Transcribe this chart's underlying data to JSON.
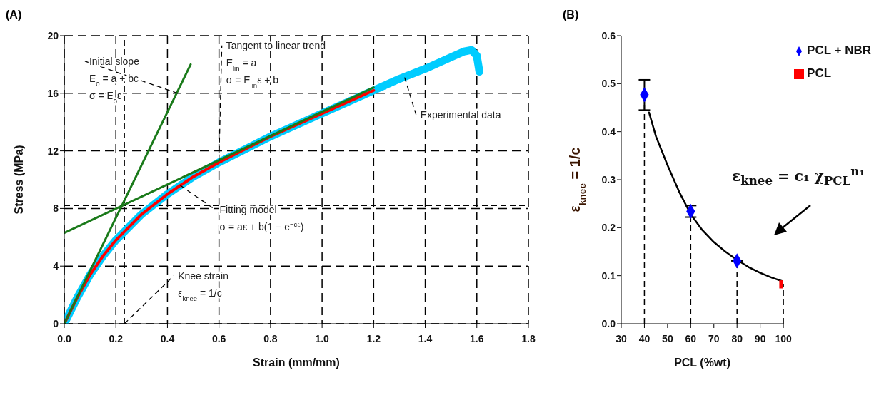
{
  "chart_data": [
    {
      "type": "line",
      "title": "(A)",
      "xlabel": "Strain (mm/mm)",
      "ylabel": "Stress (MPa)",
      "xlim": [
        0,
        1.8
      ],
      "ylim": [
        0,
        20
      ],
      "xticks": [
        {
          "value": 0,
          "label": "0.0"
        },
        {
          "value": 0.2,
          "label": "0.2"
        },
        {
          "value": 0.4,
          "label": "0.4"
        },
        {
          "value": 0.6,
          "label": "0.6"
        },
        {
          "value": 0.8,
          "label": "0.8"
        },
        {
          "value": 1,
          "label": "1.0"
        },
        {
          "value": 1.2,
          "label": "1.2"
        },
        {
          "value": 1.4,
          "label": "1.4"
        },
        {
          "value": 1.6,
          "label": "1.6"
        },
        {
          "value": 1.8,
          "label": "1.8"
        }
      ],
      "yticks": [
        0,
        4,
        8,
        12,
        16,
        20
      ],
      "grid": true,
      "legend": false,
      "marker": "none",
      "line_style": "solid",
      "series": [
        {
          "color": "#00ccff",
          "x": [
            0,
            0.05,
            0.1,
            0.15,
            0.2,
            0.3,
            0.4,
            0.5,
            0.6,
            0.7,
            0.8,
            0.9,
            1.0,
            1.1,
            1.2,
            1.3,
            1.4,
            1.5,
            1.55,
            1.58,
            1.6,
            1.61
          ],
          "values": [
            0,
            1.8,
            3.4,
            4.7,
            5.8,
            7.6,
            9.0,
            10.2,
            11.2,
            12.1,
            13.0,
            13.8,
            14.6,
            15.4,
            16.2,
            17.0,
            17.7,
            18.5,
            18.9,
            19.0,
            18.6,
            17.5
          ]
        },
        {
          "color": "#ff0000",
          "x": [
            0,
            0.05,
            0.1,
            0.15,
            0.2,
            0.3,
            0.4,
            0.5,
            0.6,
            0.7,
            0.8,
            0.9,
            1.0,
            1.1,
            1.2
          ],
          "values": [
            0,
            1.8,
            3.4,
            4.7,
            5.8,
            7.6,
            9.0,
            10.2,
            11.2,
            12.1,
            13.0,
            13.8,
            14.6,
            15.4,
            16.2
          ]
        },
        {
          "color": "#1a7a1a",
          "x": [
            0,
            0.49
          ],
          "values": [
            0,
            18
          ]
        },
        {
          "color": "#1a7a1a",
          "x": [
            0,
            1.2
          ],
          "values": [
            6.3,
            16.4
          ]
        }
      ],
      "ref_lines": [
        {
          "axis": "x",
          "value": 0.233,
          "color": "#000000",
          "line_style": "dashed"
        },
        {
          "axis": "y",
          "value": 8.2,
          "color": "#000000",
          "line_style": "dashed"
        }
      ],
      "annotations": [
        {
          "text": "Initial slope\nE$_{0}$ = a + bc\nσ = E$_{0}$ε",
          "x": 0.44,
          "y": 16
        },
        {
          "text": "Tangent to linear trend\nE$_{lin}$ = a\nσ = E$_{lin}$ε + b",
          "x": 0.6,
          "y": 11.4
        },
        {
          "text": "Experimental data",
          "x": 1.32,
          "y": 17.1
        },
        {
          "text": "Fitting model\nσ = aε + b(1 − e$^{−cε}$)",
          "x": 0.45,
          "y": 9.6
        },
        {
          "text": "Knee strain\nε$_{knee}$ = 1/c",
          "x": 0.233,
          "y": 0
        }
      ]
    },
    {
      "type": "scatter",
      "title": "(B)",
      "xlabel": "PCL (%wt)",
      "ylabel": "ε$_{knee}$ = 1/c",
      "xlim": [
        30,
        100
      ],
      "ylim": [
        0,
        0.6
      ],
      "xticks": [
        30,
        40,
        50,
        60,
        70,
        80,
        90,
        100
      ],
      "yticks": [
        {
          "value": 0,
          "label": "0.0"
        },
        {
          "value": 0.1,
          "label": "0.1"
        },
        {
          "value": 0.2,
          "label": "0.2"
        },
        {
          "value": 0.3,
          "label": "0.3"
        },
        {
          "value": 0.4,
          "label": "0.4"
        },
        {
          "value": 0.5,
          "label": "0.5"
        },
        {
          "value": 0.6,
          "label": "0.6"
        }
      ],
      "grid": false,
      "legend": "top right",
      "series": [
        {
          "name": "PCL + NBR",
          "color": "#0000ff",
          "marker": "diamond",
          "x": [
            40,
            60,
            80
          ],
          "values": [
            0.477,
            0.234,
            0.131
          ],
          "errors": [
            [
              0.445,
              0.508
            ],
            [
              0.222,
              0.246
            ],
            null
          ]
        },
        {
          "name": "PCL",
          "color": "#ff0000",
          "marker": "square",
          "x": [
            100
          ],
          "values": [
            0.082
          ]
        },
        {
          "type": "line",
          "color": "#000000",
          "marker": "none",
          "x": [
            42,
            45,
            50,
            55,
            60,
            65,
            70,
            75,
            80,
            85,
            90,
            95,
            100
          ],
          "values": [
            0.44,
            0.39,
            0.33,
            0.275,
            0.228,
            0.195,
            0.17,
            0.15,
            0.133,
            0.118,
            0.106,
            0.096,
            0.088
          ]
        }
      ],
      "ref_lines": [
        {
          "axis": "x",
          "value": 40,
          "color": "#000000",
          "line_style": "dashed"
        },
        {
          "axis": "x",
          "value": 60,
          "color": "#000000",
          "line_style": "dashed"
        },
        {
          "axis": "x",
          "value": 80,
          "color": "#000000",
          "line_style": "dashed"
        },
        {
          "axis": "x",
          "value": 100,
          "color": "#000000",
          "line_style": "dashed"
        }
      ],
      "annotations": [
        "ε$_{knee}$ = c₁ χ$_{PCL}$$^{n₁}$"
      ]
    }
  ]
}
